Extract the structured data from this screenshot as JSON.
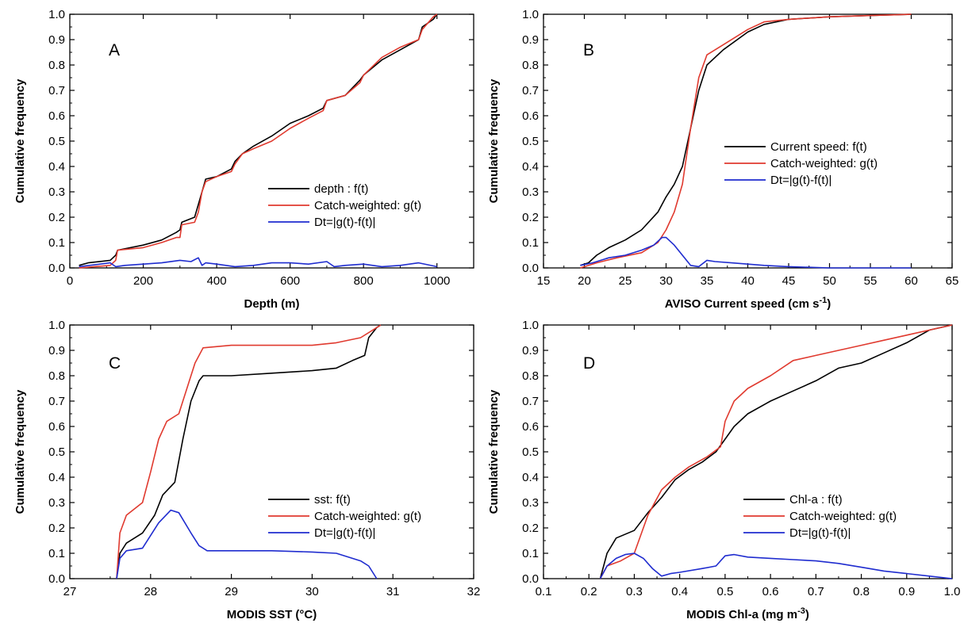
{
  "chart_data": [
    {
      "panel": "A",
      "type": "line",
      "xlabel": "Depth (m)",
      "ylabel": "Cumulative frequency",
      "xlim": [
        0,
        1100
      ],
      "ylim": [
        0,
        1.0
      ],
      "xticks": [
        0,
        200,
        400,
        600,
        800,
        1000
      ],
      "yticks": [
        0.0,
        0.1,
        0.2,
        0.3,
        0.4,
        0.5,
        0.6,
        0.7,
        0.8,
        0.9,
        1.0
      ],
      "legend_position": "right-center",
      "series": [
        {
          "name": "depth : f(t)",
          "color": "#000000",
          "x": [
            25,
            50,
            110,
            125,
            130,
            200,
            250,
            290,
            300,
            305,
            340,
            350,
            360,
            370,
            400,
            440,
            450,
            470,
            500,
            550,
            600,
            650,
            690,
            700,
            750,
            790,
            800,
            850,
            900,
            950,
            960,
            990,
            1000
          ],
          "y": [
            0.01,
            0.02,
            0.03,
            0.05,
            0.07,
            0.09,
            0.11,
            0.14,
            0.15,
            0.18,
            0.2,
            0.25,
            0.3,
            0.35,
            0.36,
            0.39,
            0.42,
            0.45,
            0.48,
            0.52,
            0.57,
            0.6,
            0.63,
            0.66,
            0.68,
            0.74,
            0.76,
            0.82,
            0.86,
            0.9,
            0.95,
            0.98,
            1.0
          ]
        },
        {
          "name": "Catch-weighted: g(t)",
          "color": "#e03a2f",
          "x": [
            25,
            110,
            125,
            130,
            200,
            250,
            290,
            300,
            305,
            340,
            350,
            360,
            370,
            400,
            440,
            450,
            470,
            500,
            550,
            600,
            650,
            690,
            700,
            750,
            790,
            800,
            850,
            900,
            950,
            960,
            990,
            1000
          ],
          "y": [
            0.0,
            0.01,
            0.03,
            0.07,
            0.08,
            0.1,
            0.12,
            0.12,
            0.17,
            0.18,
            0.22,
            0.3,
            0.34,
            0.36,
            0.38,
            0.41,
            0.45,
            0.47,
            0.5,
            0.55,
            0.59,
            0.62,
            0.66,
            0.68,
            0.73,
            0.76,
            0.83,
            0.87,
            0.9,
            0.94,
            0.99,
            1.0
          ]
        },
        {
          "name": "Dt=|g(t)-f(t)|",
          "color": "#1f2ccf",
          "x": [
            25,
            110,
            125,
            150,
            200,
            250,
            300,
            330,
            350,
            360,
            370,
            400,
            450,
            500,
            550,
            600,
            650,
            700,
            720,
            750,
            800,
            850,
            900,
            950,
            1000
          ],
          "y": [
            0.005,
            0.02,
            0.005,
            0.01,
            0.015,
            0.02,
            0.03,
            0.025,
            0.04,
            0.01,
            0.02,
            0.015,
            0.005,
            0.01,
            0.02,
            0.02,
            0.015,
            0.025,
            0.005,
            0.01,
            0.015,
            0.005,
            0.01,
            0.02,
            0.005
          ]
        }
      ]
    },
    {
      "panel": "B",
      "type": "line",
      "xlabel": "AVISO Current speed (cm s",
      "xlabel_sup": "-1",
      "xlabel_end": ")",
      "ylabel": "Cumulative frequency",
      "xlim": [
        15,
        65
      ],
      "ylim": [
        0,
        1.0
      ],
      "xticks": [
        15,
        20,
        25,
        30,
        35,
        40,
        45,
        50,
        55,
        60,
        65
      ],
      "yticks": [
        0.0,
        0.1,
        0.2,
        0.3,
        0.4,
        0.5,
        0.6,
        0.7,
        0.8,
        0.9,
        1.0
      ],
      "legend_position": "right-center",
      "series": [
        {
          "name": "Current speed: f(t)",
          "color": "#000000",
          "x": [
            19.5,
            20.5,
            21.5,
            23,
            25,
            27,
            29,
            30,
            31,
            32,
            33,
            34,
            35,
            37,
            40,
            42,
            45,
            50,
            55,
            60
          ],
          "y": [
            0.01,
            0.02,
            0.05,
            0.08,
            0.11,
            0.15,
            0.22,
            0.28,
            0.33,
            0.4,
            0.55,
            0.7,
            0.8,
            0.86,
            0.93,
            0.96,
            0.98,
            0.99,
            0.995,
            1.0
          ]
        },
        {
          "name": "Catch-weighted: g(t)",
          "color": "#e03a2f",
          "x": [
            19.5,
            21.5,
            24,
            27,
            29,
            30,
            31,
            32,
            33,
            34,
            35,
            37,
            40,
            42,
            45,
            50,
            55,
            60
          ],
          "y": [
            0.0,
            0.02,
            0.04,
            0.06,
            0.1,
            0.15,
            0.22,
            0.33,
            0.55,
            0.75,
            0.84,
            0.88,
            0.94,
            0.97,
            0.98,
            0.99,
            0.995,
            1.0
          ]
        },
        {
          "name": "Dt=|g(t)-f(t)|",
          "color": "#1f2ccf",
          "x": [
            19.5,
            21,
            23,
            25,
            27,
            28.5,
            29.5,
            30,
            31,
            32,
            33,
            34,
            35,
            36,
            38,
            40,
            42,
            45,
            50,
            55,
            60
          ],
          "y": [
            0.01,
            0.02,
            0.04,
            0.05,
            0.07,
            0.09,
            0.12,
            0.12,
            0.09,
            0.05,
            0.01,
            0.005,
            0.03,
            0.025,
            0.02,
            0.015,
            0.01,
            0.005,
            0.0,
            0.0,
            0.0
          ]
        }
      ]
    },
    {
      "panel": "C",
      "type": "line",
      "xlabel": "MODIS SST (°C)",
      "ylabel": "Cumulative frequency",
      "xlim": [
        27,
        32
      ],
      "ylim": [
        0,
        1.0
      ],
      "xticks": [
        27,
        28,
        29,
        30,
        31,
        32
      ],
      "yticks": [
        0.0,
        0.1,
        0.2,
        0.3,
        0.4,
        0.5,
        0.6,
        0.7,
        0.8,
        0.9,
        1.0
      ],
      "legend_position": "right-center",
      "series": [
        {
          "name": "sst: f(t)",
          "color": "#000000",
          "x": [
            27.58,
            27.62,
            27.7,
            27.9,
            28.05,
            28.15,
            28.3,
            28.4,
            28.5,
            28.6,
            28.65,
            29.0,
            29.5,
            30.0,
            30.3,
            30.5,
            30.65,
            30.7,
            30.8,
            30.85
          ],
          "y": [
            0.0,
            0.1,
            0.14,
            0.18,
            0.25,
            0.33,
            0.38,
            0.55,
            0.7,
            0.78,
            0.8,
            0.8,
            0.81,
            0.82,
            0.83,
            0.86,
            0.88,
            0.95,
            0.99,
            1.0
          ]
        },
        {
          "name": "Catch-weighted: g(t)",
          "color": "#e03a2f",
          "x": [
            27.58,
            27.62,
            27.7,
            27.9,
            28.0,
            28.1,
            28.2,
            28.35,
            28.45,
            28.55,
            28.65,
            29.0,
            29.5,
            30.0,
            30.3,
            30.6,
            30.75,
            30.85
          ],
          "y": [
            0.0,
            0.18,
            0.25,
            0.3,
            0.42,
            0.55,
            0.62,
            0.65,
            0.75,
            0.85,
            0.91,
            0.92,
            0.92,
            0.92,
            0.93,
            0.95,
            0.98,
            1.0
          ]
        },
        {
          "name": "Dt=|g(t)-f(t)|",
          "color": "#1f2ccf",
          "x": [
            27.58,
            27.62,
            27.7,
            27.9,
            28.1,
            28.25,
            28.35,
            28.5,
            28.6,
            28.7,
            29.0,
            29.5,
            30.0,
            30.3,
            30.6,
            30.7,
            30.8
          ],
          "y": [
            0.0,
            0.08,
            0.11,
            0.12,
            0.22,
            0.27,
            0.26,
            0.18,
            0.13,
            0.11,
            0.11,
            0.11,
            0.105,
            0.1,
            0.07,
            0.05,
            0.0
          ]
        }
      ]
    },
    {
      "panel": "D",
      "type": "line",
      "xlabel": "MODIS Chl-a (mg m",
      "xlabel_sup": "-3",
      "xlabel_end": ")",
      "ylabel": "Cumulative frequency",
      "xlim": [
        0.1,
        1.0
      ],
      "ylim": [
        0,
        1.0
      ],
      "xticks": [
        0.1,
        0.2,
        0.3,
        0.4,
        0.5,
        0.6,
        0.7,
        0.8,
        0.9,
        1.0
      ],
      "yticks": [
        0.0,
        0.1,
        0.2,
        0.3,
        0.4,
        0.5,
        0.6,
        0.7,
        0.8,
        0.9,
        1.0
      ],
      "legend_position": "right-center",
      "series": [
        {
          "name": "Chl-a : f(t)",
          "color": "#000000",
          "x": [
            0.225,
            0.24,
            0.26,
            0.3,
            0.33,
            0.36,
            0.39,
            0.42,
            0.45,
            0.48,
            0.5,
            0.52,
            0.55,
            0.6,
            0.65,
            0.7,
            0.75,
            0.8,
            0.85,
            0.9,
            0.95,
            1.0
          ],
          "y": [
            0.0,
            0.1,
            0.16,
            0.19,
            0.26,
            0.32,
            0.39,
            0.43,
            0.46,
            0.5,
            0.55,
            0.6,
            0.65,
            0.7,
            0.74,
            0.78,
            0.83,
            0.85,
            0.89,
            0.93,
            0.98,
            1.0
          ]
        },
        {
          "name": "Catch-weighted: g(t)",
          "color": "#e03a2f",
          "x": [
            0.225,
            0.24,
            0.27,
            0.3,
            0.33,
            0.36,
            0.39,
            0.42,
            0.46,
            0.49,
            0.5,
            0.52,
            0.55,
            0.6,
            0.65,
            0.7,
            0.75,
            0.8,
            0.85,
            0.9,
            0.95,
            1.0
          ],
          "y": [
            0.0,
            0.05,
            0.07,
            0.1,
            0.25,
            0.35,
            0.4,
            0.44,
            0.48,
            0.52,
            0.62,
            0.7,
            0.75,
            0.8,
            0.86,
            0.88,
            0.9,
            0.92,
            0.94,
            0.96,
            0.98,
            1.0
          ]
        },
        {
          "name": "Dt=|g(t)-f(t)|",
          "color": "#1f2ccf",
          "x": [
            0.225,
            0.24,
            0.26,
            0.28,
            0.3,
            0.32,
            0.34,
            0.36,
            0.38,
            0.4,
            0.45,
            0.48,
            0.5,
            0.52,
            0.55,
            0.6,
            0.65,
            0.7,
            0.75,
            0.8,
            0.85,
            0.9,
            0.95,
            1.0
          ],
          "y": [
            0.0,
            0.05,
            0.08,
            0.095,
            0.1,
            0.08,
            0.04,
            0.01,
            0.02,
            0.025,
            0.04,
            0.05,
            0.09,
            0.095,
            0.085,
            0.08,
            0.075,
            0.07,
            0.06,
            0.045,
            0.03,
            0.02,
            0.01,
            0.0
          ]
        }
      ]
    }
  ]
}
